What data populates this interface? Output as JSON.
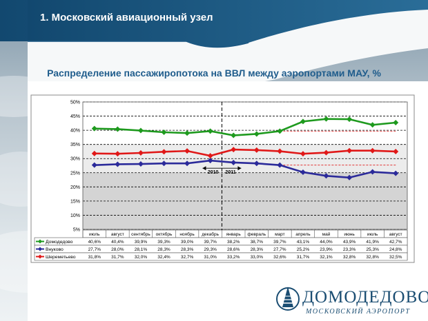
{
  "header": {
    "title": "1. Московский авиационный узел"
  },
  "colors": {
    "header_bg": "#1b5782",
    "sky_light": "#c8d4dc",
    "accent": "#1f5c8c"
  },
  "logo": {
    "name": "ДОМОДЕДОВО",
    "subtitle": "МОСКОВСКИЙ АЭРОПОРТ"
  },
  "chart_data": {
    "type": "line",
    "title": "Распределение пассажиропотока на ВВЛ между аэропортами МАУ, %",
    "categories": [
      "июль",
      "август",
      "сентябрь",
      "октябрь",
      "ноябрь",
      "декабрь",
      "январь",
      "февраль",
      "март",
      "апрель",
      "май",
      "июнь",
      "июль",
      "август"
    ],
    "y_ticks": [
      "5%",
      "10%",
      "15%",
      "20%",
      "25%",
      "30%",
      "35%",
      "40%",
      "45%",
      "50%"
    ],
    "ylim": [
      5,
      50
    ],
    "year_labels": [
      "2010",
      "2011"
    ],
    "grid": true,
    "legend_position": "table-below",
    "series": [
      {
        "name": "Домодедово",
        "color": "#1e9a1e",
        "values": [
          40.6,
          40.4,
          39.9,
          39.3,
          39.0,
          39.7,
          38.2,
          38.7,
          39.7,
          43.1,
          44.0,
          43.9,
          41.9,
          42.7
        ],
        "labels": [
          "40,6%",
          "40,4%",
          "39,9%",
          "39,3%",
          "39,0%",
          "39,7%",
          "38,2%",
          "38,7%",
          "39,7%",
          "43,1%",
          "44,0%",
          "43,9%",
          "41,9%",
          "42,7%"
        ]
      },
      {
        "name": "Внуково",
        "color": "#2b2a9a",
        "values": [
          27.7,
          28.0,
          28.1,
          28.3,
          28.3,
          29.3,
          28.6,
          28.3,
          27.7,
          25.2,
          23.9,
          23.3,
          25.3,
          24.8
        ],
        "labels": [
          "27,7%",
          "28,0%",
          "28,1%",
          "28,3%",
          "28,3%",
          "29,3%",
          "28,6%",
          "28,3%",
          "27,7%",
          "25,2%",
          "23,9%",
          "23,3%",
          "25,3%",
          "24,8%"
        ]
      },
      {
        "name": "Шереметьево",
        "color": "#e01818",
        "values": [
          31.8,
          31.7,
          32.0,
          32.4,
          32.7,
          31.0,
          33.2,
          33.0,
          32.6,
          31.7,
          32.1,
          32.8,
          32.8,
          32.5
        ],
        "labels": [
          "31,8%",
          "31,7%",
          "32,0%",
          "32,4%",
          "32,7%",
          "31,0%",
          "33,2%",
          "33,0%",
          "32,6%",
          "31,7%",
          "32,1%",
          "32,8%",
          "32,8%",
          "32,5%"
        ]
      }
    ]
  }
}
